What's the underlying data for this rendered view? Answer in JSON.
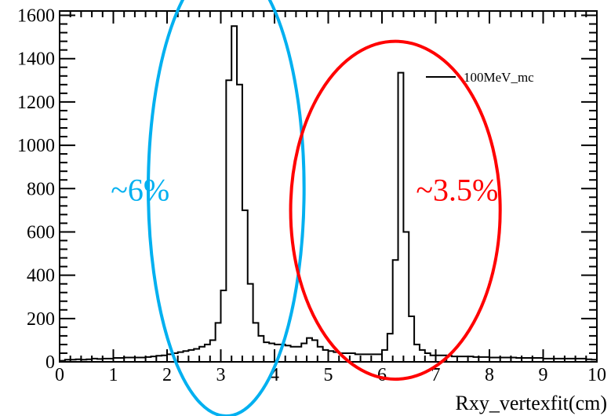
{
  "chart_data": {
    "type": "histogram",
    "title": "",
    "xlabel": "Rxy_vertexfit(cm)",
    "ylabel": "",
    "xlim": [
      0,
      10
    ],
    "ylim": [
      0,
      1620
    ],
    "grid": false,
    "legend_position": "top-right",
    "x_ticks": [
      "0",
      "1",
      "2",
      "3",
      "4",
      "5",
      "6",
      "7",
      "8",
      "9",
      "10"
    ],
    "y_ticks": [
      "0",
      "200",
      "400",
      "600",
      "800",
      "1000",
      "1200",
      "1400",
      "1600"
    ],
    "bin_width": 0.1,
    "series": [
      {
        "name": "100MeV_mc",
        "color": "#000000",
        "values": [
          5,
          10,
          10,
          12,
          10,
          12,
          15,
          13,
          15,
          15,
          18,
          18,
          20,
          20,
          20,
          20,
          22,
          25,
          28,
          30,
          35,
          40,
          45,
          50,
          55,
          60,
          70,
          80,
          100,
          180,
          330,
          1300,
          1550,
          1280,
          700,
          360,
          180,
          120,
          90,
          85,
          80,
          80,
          75,
          70,
          70,
          85,
          110,
          100,
          70,
          55,
          50,
          45,
          40,
          40,
          40,
          35,
          35,
          35,
          35,
          35,
          55,
          130,
          470,
          1335,
          600,
          210,
          80,
          55,
          40,
          30,
          30,
          30,
          28,
          25,
          25,
          25,
          25,
          22,
          22,
          22,
          20,
          20,
          20,
          20,
          20,
          18,
          18,
          18,
          18,
          18,
          15,
          15,
          15,
          15,
          15,
          15,
          15,
          15,
          12,
          10
        ]
      }
    ],
    "annotations": [
      {
        "text": "~6%",
        "color": "#00b0f0",
        "x": 1.5,
        "y": 745
      },
      {
        "text": "~3.5%",
        "color": "#ff0000",
        "x": 7.4,
        "y": 745
      }
    ],
    "highlights": [
      {
        "shape": "ellipse",
        "color": "#00b0f0",
        "cx": 3.1,
        "cy": 800,
        "rx": 1.45,
        "ry": 1050
      },
      {
        "shape": "ellipse",
        "color": "#ff0000",
        "cx": 6.25,
        "cy": 700,
        "rx": 1.95,
        "ry": 780
      }
    ]
  }
}
